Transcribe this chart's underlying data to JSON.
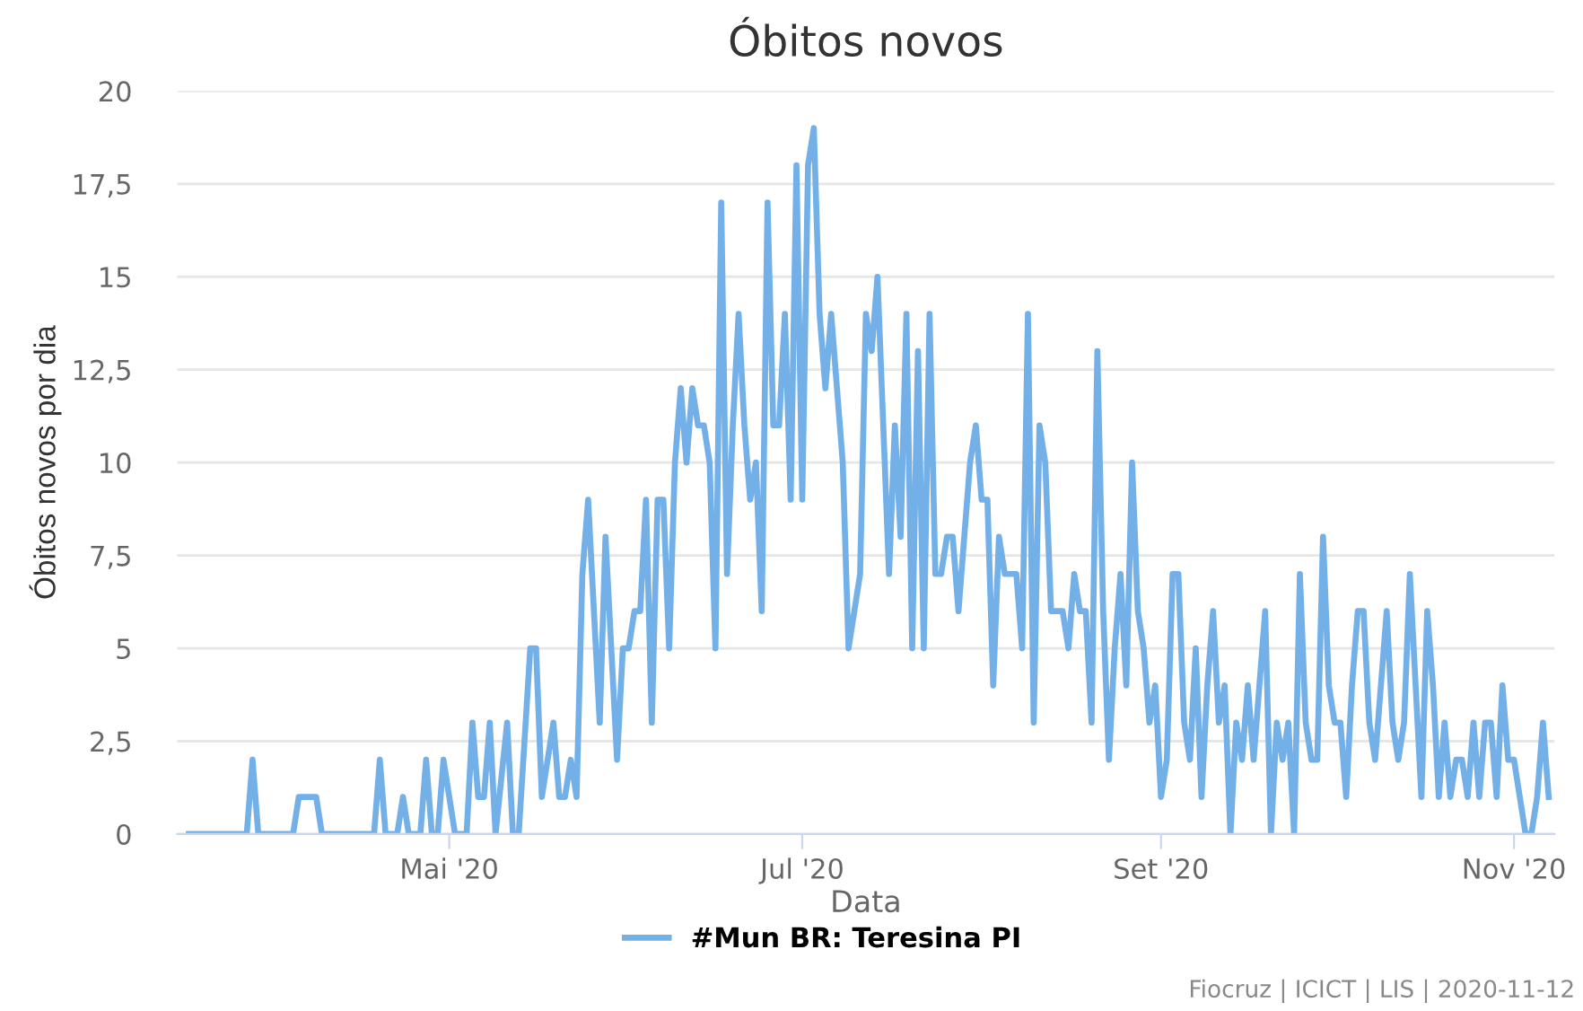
{
  "chart_data": {
    "type": "line",
    "title": "Óbitos novos",
    "xlabel": "Data",
    "ylabel": "Óbitos novos por dia",
    "xlim": [
      "2020-03-15",
      "2020-11-08"
    ],
    "xticks": [
      {
        "value": "2020-05-01",
        "label": "Mai '20"
      },
      {
        "value": "2020-07-01",
        "label": "Jul '20"
      },
      {
        "value": "2020-09-01",
        "label": "Set '20"
      },
      {
        "value": "2020-11-01",
        "label": "Nov '20"
      }
    ],
    "ylim": [
      0,
      20
    ],
    "yticks": [
      0,
      {
        "value": 2.5,
        "label": "2,5"
      },
      5,
      {
        "value": 7.5,
        "label": "7,5"
      },
      10,
      {
        "value": 12.5,
        "label": "12,5"
      },
      15,
      {
        "value": 17.5,
        "label": "17,5"
      },
      20
    ],
    "grid": "y",
    "legend": "bottom",
    "marker": "none",
    "line_style": "solid",
    "annotations": [
      "Fiocruz | ICICT | LIS | 2020-11-12"
    ],
    "series": [
      {
        "name": "#Mun BR: Teresina PI",
        "color": "#74b0e8",
        "x": [
          "2020-03-17",
          "2020-03-27",
          "2020-03-28",
          "2020-03-29",
          "2020-04-04",
          "2020-04-05",
          "2020-04-08",
          "2020-04-09",
          "2020-04-18",
          "2020-04-19",
          "2020-04-20",
          "2020-04-22",
          "2020-04-23",
          "2020-04-24",
          "2020-04-26",
          "2020-04-27",
          "2020-04-28",
          "2020-04-29",
          "2020-04-30",
          "2020-05-02",
          "2020-05-04",
          "2020-05-05",
          "2020-05-06",
          "2020-05-07",
          "2020-05-08",
          "2020-05-09",
          "2020-05-11",
          "2020-05-12",
          "2020-05-13",
          "2020-05-15",
          "2020-05-16",
          "2020-05-17",
          "2020-05-19",
          "2020-05-20",
          "2020-05-21",
          "2020-05-22",
          "2020-05-23",
          "2020-05-24",
          "2020-05-25",
          "2020-05-27",
          "2020-05-28",
          "2020-05-30",
          "2020-05-31",
          "2020-06-01",
          "2020-06-02",
          "2020-06-03",
          "2020-06-04",
          "2020-06-05",
          "2020-06-06",
          "2020-06-07",
          "2020-06-08",
          "2020-06-09",
          "2020-06-10",
          "2020-06-11",
          "2020-06-12",
          "2020-06-13",
          "2020-06-14",
          "2020-06-15",
          "2020-06-16",
          "2020-06-17",
          "2020-06-18",
          "2020-06-19",
          "2020-06-20",
          "2020-06-21",
          "2020-06-22",
          "2020-06-23",
          "2020-06-24",
          "2020-06-25",
          "2020-06-26",
          "2020-06-27",
          "2020-06-28",
          "2020-06-29",
          "2020-06-30",
          "2020-07-01",
          "2020-07-02",
          "2020-07-03",
          "2020-07-04",
          "2020-07-05",
          "2020-07-06",
          "2020-07-07",
          "2020-07-08",
          "2020-07-09",
          "2020-07-10",
          "2020-07-11",
          "2020-07-12",
          "2020-07-13",
          "2020-07-14",
          "2020-07-15",
          "2020-07-16",
          "2020-07-17",
          "2020-07-18",
          "2020-07-19",
          "2020-07-20",
          "2020-07-21",
          "2020-07-22",
          "2020-07-23",
          "2020-07-24",
          "2020-07-25",
          "2020-07-26",
          "2020-07-27",
          "2020-07-28",
          "2020-07-29",
          "2020-07-30",
          "2020-07-31",
          "2020-08-01",
          "2020-08-02",
          "2020-08-03",
          "2020-08-04",
          "2020-08-05",
          "2020-08-06",
          "2020-08-07",
          "2020-08-08",
          "2020-08-09",
          "2020-08-10",
          "2020-08-11",
          "2020-08-12",
          "2020-08-13",
          "2020-08-14",
          "2020-08-15",
          "2020-08-16",
          "2020-08-17",
          "2020-08-18",
          "2020-08-19",
          "2020-08-20",
          "2020-08-21",
          "2020-08-22",
          "2020-08-23",
          "2020-08-24",
          "2020-08-25",
          "2020-08-26",
          "2020-08-27",
          "2020-08-28",
          "2020-08-29",
          "2020-08-30",
          "2020-08-31",
          "2020-09-01",
          "2020-09-02",
          "2020-09-03",
          "2020-09-04",
          "2020-09-05",
          "2020-09-06",
          "2020-09-07",
          "2020-09-08",
          "2020-09-09",
          "2020-09-10",
          "2020-09-11",
          "2020-09-12",
          "2020-09-13",
          "2020-09-14",
          "2020-09-15",
          "2020-09-16",
          "2020-09-17",
          "2020-09-18",
          "2020-09-19",
          "2020-09-20",
          "2020-09-21",
          "2020-09-22",
          "2020-09-23",
          "2020-09-24",
          "2020-09-25",
          "2020-09-26",
          "2020-09-27",
          "2020-09-28",
          "2020-09-29",
          "2020-09-30",
          "2020-10-01",
          "2020-10-02",
          "2020-10-03",
          "2020-10-04",
          "2020-10-05",
          "2020-10-06",
          "2020-10-07",
          "2020-10-08",
          "2020-10-09",
          "2020-10-10",
          "2020-10-11",
          "2020-10-12",
          "2020-10-13",
          "2020-10-14",
          "2020-10-15",
          "2020-10-16",
          "2020-10-17",
          "2020-10-18",
          "2020-10-19",
          "2020-10-20",
          "2020-10-21",
          "2020-10-22",
          "2020-10-23",
          "2020-10-24",
          "2020-10-25",
          "2020-10-26",
          "2020-10-27",
          "2020-10-28",
          "2020-10-29",
          "2020-10-30",
          "2020-10-31",
          "2020-11-01",
          "2020-11-02",
          "2020-11-03",
          "2020-11-04",
          "2020-11-05",
          "2020-11-06",
          "2020-11-07"
        ],
        "values": [
          0,
          0,
          2,
          0,
          0,
          1,
          1,
          0,
          0,
          2,
          0,
          0,
          1,
          0,
          0,
          2,
          0,
          0,
          2,
          0,
          0,
          3,
          1,
          1,
          3,
          0,
          3,
          0,
          0,
          5,
          5,
          1,
          3,
          1,
          1,
          2,
          1,
          7,
          9,
          3,
          8,
          2,
          5,
          5,
          6,
          6,
          9,
          3,
          9,
          9,
          5,
          10,
          12,
          10,
          12,
          11,
          11,
          10,
          5,
          17,
          7,
          11,
          14,
          11,
          9,
          10,
          6,
          17,
          11,
          11,
          14,
          9,
          18,
          9,
          18,
          19,
          14,
          12,
          14,
          12,
          10,
          5,
          6,
          7,
          14,
          13,
          15,
          11,
          7,
          11,
          8,
          14,
          5,
          13,
          5,
          14,
          7,
          7,
          8,
          8,
          6,
          8,
          10,
          11,
          9,
          9,
          4,
          8,
          7,
          7,
          7,
          5,
          14,
          3,
          11,
          10,
          6,
          6,
          6,
          5,
          7,
          6,
          6,
          3,
          13,
          6,
          2,
          5,
          7,
          4,
          10,
          6,
          5,
          3,
          4,
          1,
          2,
          7,
          7,
          3,
          2,
          5,
          1,
          4,
          6,
          3,
          4,
          0,
          3,
          2,
          4,
          2,
          4,
          6,
          0,
          3,
          2,
          3,
          0,
          7,
          3,
          2,
          2,
          8,
          4,
          3,
          3,
          1,
          4,
          6,
          6,
          3,
          2,
          4,
          6,
          3,
          2,
          3,
          7,
          4,
          1,
          6,
          4,
          1,
          3,
          1,
          2,
          2,
          1,
          3,
          1,
          3,
          3,
          1,
          4,
          2,
          2,
          1,
          0,
          0,
          1,
          3,
          1
        ]
      }
    ]
  }
}
